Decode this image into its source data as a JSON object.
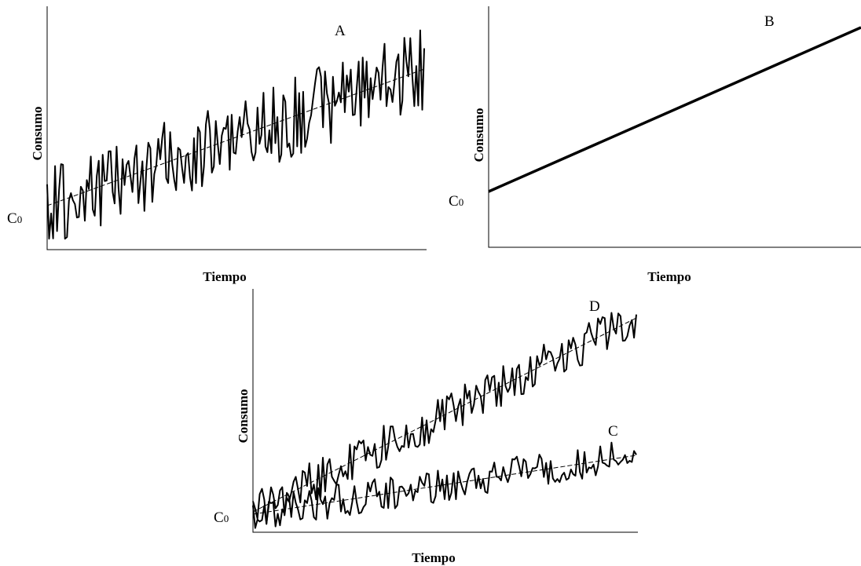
{
  "chart_data": [
    {
      "type": "line",
      "id": "A",
      "annotation": "A",
      "xlabel": "Tiempo",
      "ylabel": "Consumo",
      "origin_label": "C",
      "origin_subscript": "0",
      "trend": "dashed linear trend rising from C0, noisy series oscillating around it",
      "noise": "high",
      "slope": 0.55
    },
    {
      "type": "line",
      "id": "B",
      "annotation": "B",
      "xlabel": "Tiempo",
      "ylabel": "Consumo",
      "origin_label": "C",
      "origin_subscript": "0",
      "trend": "straight line rising from C0 with no noise",
      "noise": "none",
      "slope": 0.7
    },
    {
      "type": "line",
      "id": "CD",
      "xlabel": "Tiempo",
      "ylabel": "Consumo",
      "origin_label": "C",
      "origin_subscript": "0",
      "series": [
        {
          "name": "D",
          "slope": 0.85,
          "noise": "medium"
        },
        {
          "name": "C",
          "slope": 0.33,
          "noise": "medium"
        }
      ]
    }
  ]
}
